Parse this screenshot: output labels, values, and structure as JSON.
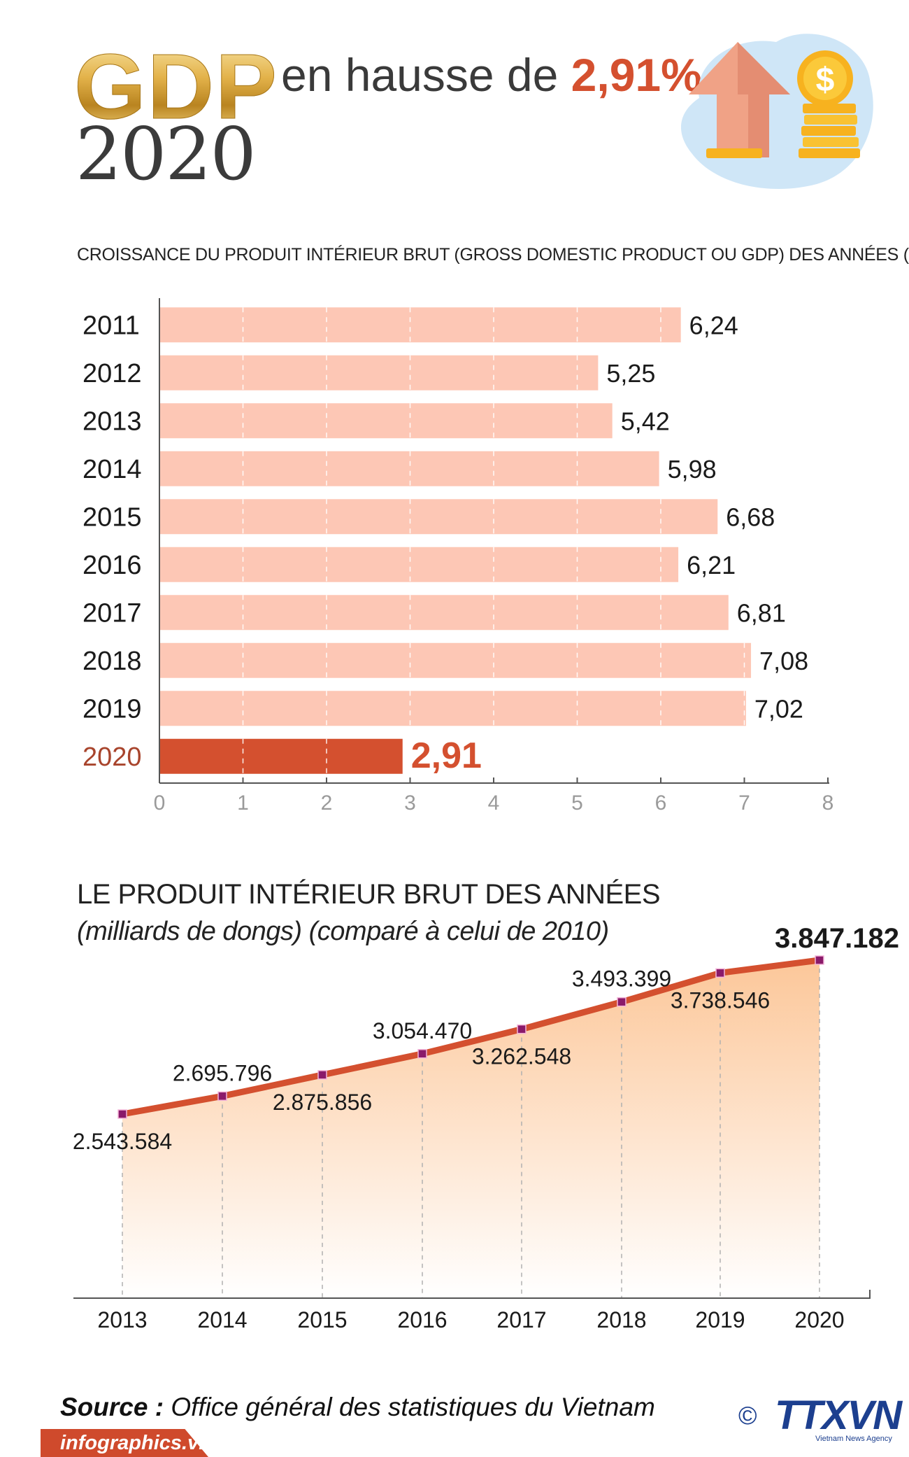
{
  "header": {
    "gdp": "GDP",
    "year": "2020",
    "tagline_prefix": "en hausse de",
    "tagline_value": "2,91%"
  },
  "colors": {
    "accent": "#d4502f",
    "bar_light": "#fdc7b5",
    "bar_highlight": "#d4502f",
    "line": "#d4502f",
    "area_top": "#fcc494",
    "marker": "#8a1a6a",
    "gold": "#d9a63a",
    "logo_blue": "#1c3f8f",
    "bubble": "#cfe6f7"
  },
  "icons": [
    "up-arrow-icon",
    "dollar-coin-icon",
    "coin-stack-icon"
  ],
  "chart_data": [
    {
      "type": "bar",
      "orientation": "horizontal",
      "title": "CROISSANCE DU PRODUIT INTÉRIEUR BRUT (GROSS DOMESTIC PRODUCT OU GDP) DES ANNÉES (%)",
      "categories": [
        "2011",
        "2012",
        "2013",
        "2014",
        "2015",
        "2016",
        "2017",
        "2018",
        "2019",
        "2020"
      ],
      "values": [
        6.24,
        5.25,
        5.42,
        5.98,
        6.68,
        6.21,
        6.81,
        7.08,
        7.02,
        2.91
      ],
      "value_labels": [
        "6,24",
        "5,25",
        "5,42",
        "5,98",
        "6,68",
        "6,21",
        "6,81",
        "7,08",
        "7,02",
        "2,91"
      ],
      "highlight": "2020",
      "xlim": [
        0,
        8
      ],
      "xticks": [
        "0",
        "1",
        "2",
        "3",
        "4",
        "5",
        "6",
        "7",
        "8"
      ],
      "grid": true
    },
    {
      "type": "area",
      "title": "LE PRODUIT INTÉRIEUR BRUT DES ANNÉES",
      "subtitle": "(milliards de dongs) (comparé à celui de 2010)",
      "categories": [
        "2013",
        "2014",
        "2015",
        "2016",
        "2017",
        "2018",
        "2019",
        "2020"
      ],
      "values": [
        2543584,
        2695796,
        2875856,
        3054470,
        3262548,
        3493399,
        3738546,
        3847182
      ],
      "value_labels": [
        "2.543.584",
        "2.695.796",
        "2.875.856",
        "3.054.470",
        "3.262.548",
        "3.493.399",
        "3.738.546",
        "3.847.182"
      ],
      "label_positions": [
        "below",
        "above",
        "below",
        "above",
        "below",
        "above",
        "below",
        "above"
      ],
      "highlight": "2020",
      "grid": false
    }
  ],
  "footer": {
    "source_label": "Source :",
    "source_text": "Office général des statistiques du Vietnam",
    "site": "infographics.vn",
    "copyright": "©",
    "agency": "TTXVN",
    "agency_sub": "Vietnam News Agency"
  }
}
